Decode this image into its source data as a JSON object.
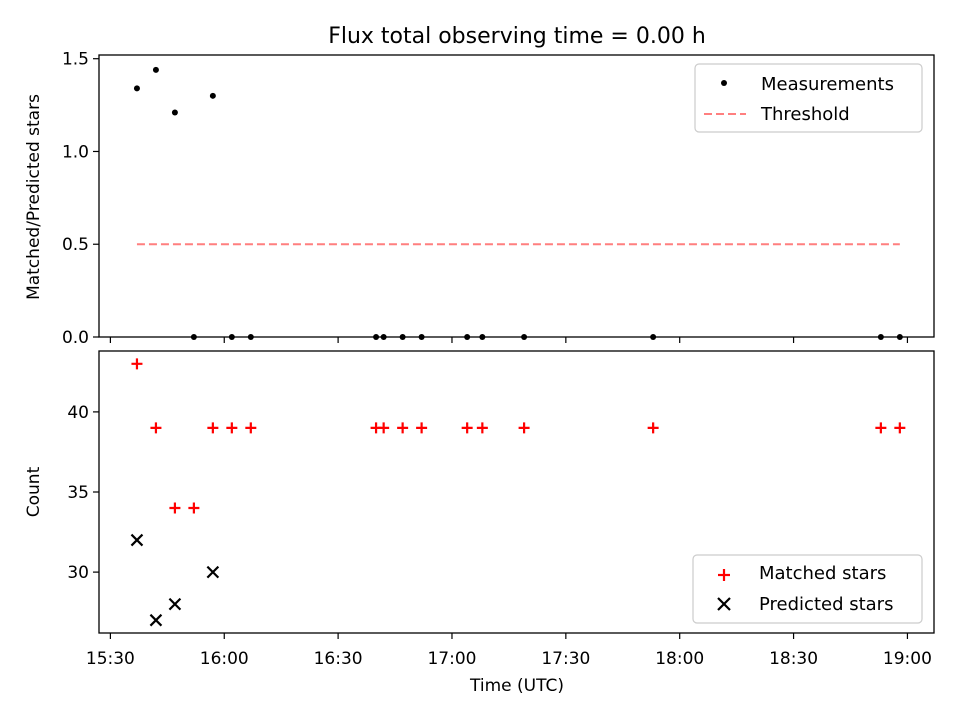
{
  "figure": {
    "title": "Flux total observing time = 0.00 h",
    "xlabel": "Time (UTC)",
    "xticks": [
      "15:30",
      "16:00",
      "16:30",
      "17:00",
      "17:30",
      "18:00",
      "18:30",
      "19:00"
    ]
  },
  "colors": {
    "measurements": "#000000",
    "threshold": "#ff7f7f",
    "matched": "#ff0000",
    "predicted": "#000000"
  },
  "chart_data": [
    {
      "type": "scatter",
      "panel": "top",
      "ylabel": "Matched/Predicted stars",
      "xlim": [
        "15:27",
        "19:07"
      ],
      "ylim": [
        0,
        1.52
      ],
      "yticks": [
        "0.0",
        "0.5",
        "1.0",
        "1.5"
      ],
      "legend": "top-right",
      "series": [
        {
          "name": "Measurements",
          "marker": "dot",
          "x": [
            "15:37",
            "15:42",
            "15:47",
            "15:52",
            "15:57",
            "16:02",
            "16:07",
            "16:40",
            "16:42",
            "16:47",
            "16:52",
            "17:04",
            "17:08",
            "17:19",
            "17:53",
            "18:53",
            "18:58"
          ],
          "y": [
            1.34,
            1.44,
            1.21,
            0,
            1.3,
            0,
            0,
            0,
            0,
            0,
            0,
            0,
            0,
            0,
            0,
            0,
            0
          ]
        },
        {
          "name": "Threshold",
          "style": "dashed",
          "x": [
            "15:37",
            "18:58"
          ],
          "y": [
            0.5,
            0.5
          ]
        }
      ]
    },
    {
      "type": "scatter",
      "panel": "bottom",
      "ylabel": "Count",
      "xlim": [
        "15:27",
        "19:07"
      ],
      "ylim": [
        26.2,
        43.8
      ],
      "yticks": [
        "30",
        "35",
        "40"
      ],
      "legend": "bottom-right",
      "series": [
        {
          "name": "Matched stars",
          "marker": "plus",
          "x": [
            "15:37",
            "15:42",
            "15:47",
            "15:52",
            "15:57",
            "16:02",
            "16:07",
            "16:40",
            "16:42",
            "16:47",
            "16:52",
            "17:04",
            "17:08",
            "17:19",
            "17:53",
            "18:53",
            "18:58"
          ],
          "y": [
            43,
            39,
            34,
            34,
            39,
            39,
            39,
            39,
            39,
            39,
            39,
            39,
            39,
            39,
            39,
            39,
            39
          ]
        },
        {
          "name": "Predicted stars",
          "marker": "x",
          "x": [
            "15:37",
            "15:42",
            "15:47",
            "15:57"
          ],
          "y": [
            32,
            27,
            28,
            30
          ]
        }
      ]
    }
  ]
}
